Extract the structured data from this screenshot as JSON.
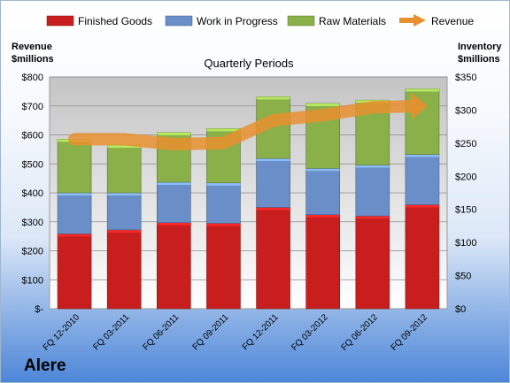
{
  "company": "Alere",
  "chart_data": {
    "type": "bar",
    "stacked": true,
    "title": "Quarterly Periods",
    "categories": [
      "FQ 12-2010",
      "FQ 03-2011",
      "FQ 06-2011",
      "FQ 09-2011",
      "FQ 12-2011",
      "FQ 03-2012",
      "FQ 06-2012",
      "FQ 09-2012"
    ],
    "left_axis": {
      "label_line1": "Revenue",
      "label_line2": "$millions",
      "range": [
        0,
        800
      ],
      "ticks": [
        0,
        100,
        200,
        300,
        400,
        500,
        600,
        700,
        800
      ],
      "tick_labels": [
        "$-",
        "$100",
        "$200",
        "$300",
        "$400",
        "$500",
        "$600",
        "$700",
        "$800"
      ]
    },
    "right_axis": {
      "label_line1": "Inventory",
      "label_line2": "$millions",
      "range": [
        0,
        350
      ],
      "ticks": [
        0,
        50,
        100,
        150,
        200,
        250,
        300,
        350
      ],
      "tick_labels": [
        "$0",
        "$50",
        "$100",
        "$150",
        "$200",
        "$250",
        "$300",
        "$350"
      ]
    },
    "grid": true,
    "legend_position": "top",
    "series": [
      {
        "name": "Finished Goods",
        "axis": "right",
        "color": "#c81e1e",
        "values": [
          113,
          119,
          130,
          129,
          153,
          142,
          140,
          157
        ]
      },
      {
        "name": "Work in Progress",
        "axis": "right",
        "color": "#6a8fc8",
        "values": [
          62,
          56,
          61,
          61,
          74,
          70,
          77,
          76
        ]
      },
      {
        "name": "Raw Materials",
        "axis": "right",
        "color": "#8ab04a",
        "values": [
          81,
          72,
          75,
          82,
          93,
          98,
          98,
          99
        ]
      },
      {
        "name": "Revenue",
        "axis": "left",
        "type": "line",
        "color": "#e8902e",
        "values": [
          585,
          585,
          568,
          572,
          650,
          668,
          695,
          700
        ]
      }
    ]
  }
}
